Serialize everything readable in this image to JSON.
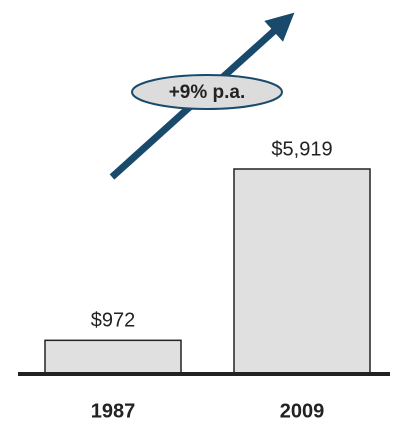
{
  "chart_data": {
    "type": "bar",
    "categories": [
      "1987",
      "2009"
    ],
    "values": [
      972,
      5919
    ],
    "value_labels": [
      "$972",
      "$5,919"
    ],
    "color": "#e0e0e0",
    "annotation": "+9% p.a."
  }
}
